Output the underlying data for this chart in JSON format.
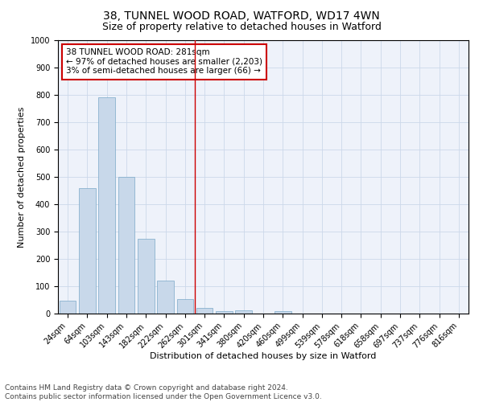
{
  "title_line1": "38, TUNNEL WOOD ROAD, WATFORD, WD17 4WN",
  "title_line2": "Size of property relative to detached houses in Watford",
  "xlabel": "Distribution of detached houses by size in Watford",
  "ylabel": "Number of detached properties",
  "footnote": "Contains HM Land Registry data © Crown copyright and database right 2024.\nContains public sector information licensed under the Open Government Licence v3.0.",
  "bar_labels": [
    "24sqm",
    "64sqm",
    "103sqm",
    "143sqm",
    "182sqm",
    "222sqm",
    "262sqm",
    "301sqm",
    "341sqm",
    "380sqm",
    "420sqm",
    "460sqm",
    "499sqm",
    "539sqm",
    "578sqm",
    "618sqm",
    "658sqm",
    "697sqm",
    "737sqm",
    "776sqm",
    "816sqm"
  ],
  "bar_values": [
    48,
    460,
    790,
    500,
    275,
    122,
    52,
    22,
    10,
    13,
    0,
    8,
    0,
    0,
    0,
    0,
    0,
    0,
    0,
    0,
    0
  ],
  "bar_color": "#c8d8ea",
  "bar_edge_color": "#7aa8c8",
  "vline_color": "#cc0000",
  "annotation_box_text": "38 TUNNEL WOOD ROAD: 281sqm\n← 97% of detached houses are smaller (2,203)\n3% of semi-detached houses are larger (66) →",
  "annotation_box_edge_color": "#cc0000",
  "annotation_box_face_color": "#ffffff",
  "ylim": [
    0,
    1000
  ],
  "yticks": [
    0,
    100,
    200,
    300,
    400,
    500,
    600,
    700,
    800,
    900,
    1000
  ],
  "grid_color": "#ccd8ea",
  "background_color": "#eef2fa",
  "title1_fontsize": 10,
  "title2_fontsize": 9,
  "axis_label_fontsize": 8,
  "tick_fontsize": 7,
  "annotation_fontsize": 7.5,
  "footnote_fontsize": 6.5
}
